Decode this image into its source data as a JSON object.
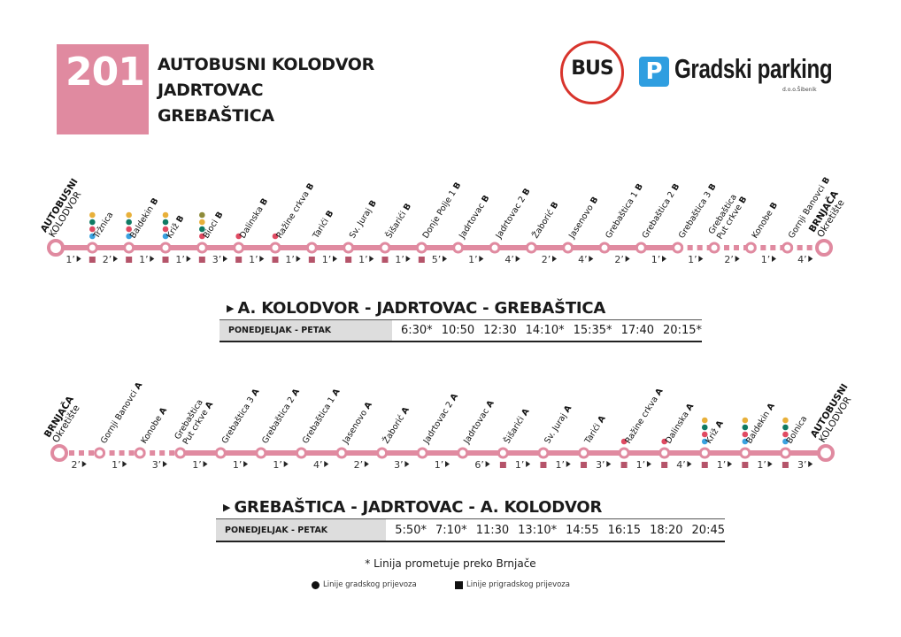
{
  "header": {
    "line_number": "201",
    "stops_title": [
      "AUTOBUSNI KOLODVOR",
      "JADRTOVAC",
      "GREBAŠTICA"
    ]
  },
  "logos": {
    "bus": "BUS",
    "parking_icon": "P",
    "parking": "Gradski parking",
    "parking_sub": "d.o.o.Šibenik"
  },
  "colors": {
    "line": "#e08aa0",
    "square": "#b5546a",
    "yellow": "#e8b03a",
    "green": "#0f7a63",
    "red": "#e04a62",
    "blue": "#3aa2e0",
    "olive": "#8e8b3a"
  },
  "route_outbound": {
    "stops": [
      {
        "name": "AUTOBUSNI",
        "name2": "KOLODVOR",
        "terminal": true,
        "bold": true
      },
      {
        "name": "Tržnica",
        "dots": [
          "yellow",
          "green",
          "red",
          "blue"
        ],
        "suburban": true
      },
      {
        "name": "Baldekin",
        "suffix": "B",
        "dots": [
          "yellow",
          "green",
          "red",
          "blue"
        ],
        "suburban": true
      },
      {
        "name": "Križ",
        "suffix": "B",
        "dots": [
          "yellow",
          "green",
          "red",
          "blue"
        ],
        "suburban": true
      },
      {
        "name": "Bioci",
        "suffix": "B",
        "dots": [
          "olive",
          "yellow",
          "green",
          "red"
        ],
        "suburban": true
      },
      {
        "name": "Dalinska",
        "suffix": "B",
        "dots": [
          "red"
        ],
        "suburban": true
      },
      {
        "name": "Ražine crkva",
        "suffix": "B",
        "dots": [
          "red"
        ],
        "suburban": true
      },
      {
        "name": "Tarići",
        "suffix": "B",
        "suburban": true
      },
      {
        "name": "Sv. Juraj",
        "suffix": "B",
        "suburban": true
      },
      {
        "name": "Šišarići",
        "suffix": "B",
        "suburban": true
      },
      {
        "name": "Donje Polje 1",
        "suffix": "B",
        "suburban": true
      },
      {
        "name": "Jadrtovac",
        "suffix": "B"
      },
      {
        "name": "Jadrtovac 2",
        "suffix": "B"
      },
      {
        "name": "Žaborić",
        "suffix": "B"
      },
      {
        "name": "Jasenovo",
        "suffix": "B"
      },
      {
        "name": "Grebaštica 1",
        "suffix": "B"
      },
      {
        "name": "Grebaštica 2",
        "suffix": "B"
      },
      {
        "name": "Grebaštica 3",
        "suffix": "B"
      },
      {
        "name": "Grebaštica",
        "name2": "Put crkve",
        "suffix": "B"
      },
      {
        "name": "Konobe",
        "suffix": "B"
      },
      {
        "name": "Gornji Banovci",
        "suffix": "B"
      },
      {
        "name": "BRNJAČA",
        "name2": "Okretište",
        "terminal": true,
        "bold": true
      }
    ],
    "minutes": [
      "1’",
      "2’",
      "1’",
      "1’",
      "3’",
      "1’",
      "1’",
      "1’",
      "1’",
      "1’",
      "5’",
      "1’",
      "4’",
      "2’",
      "4’",
      "2’",
      "1’",
      "1’",
      "2’",
      "1’",
      "4’"
    ],
    "dashed_from_segment": 17
  },
  "route_inbound": {
    "stops": [
      {
        "name": "BRNJAČA",
        "name2": "Okretište",
        "terminal": true,
        "bold": true
      },
      {
        "name": "Gornji Banovci",
        "suffix": "A"
      },
      {
        "name": "Konobe",
        "suffix": "A"
      },
      {
        "name": "Grebaštica",
        "name2": "Put crkve",
        "suffix": "A"
      },
      {
        "name": "Grebaštica 3",
        "suffix": "A"
      },
      {
        "name": "Grebaštica 2",
        "suffix": "A"
      },
      {
        "name": "Grebaštica 1",
        "suffix": "A"
      },
      {
        "name": "Jasenovo",
        "suffix": "A"
      },
      {
        "name": "Žaborić",
        "suffix": "A"
      },
      {
        "name": "Jadrtovac 2",
        "suffix": "A"
      },
      {
        "name": "Jadrtovac",
        "suffix": "A"
      },
      {
        "name": "Šišarići",
        "suffix": "A",
        "suburban": true
      },
      {
        "name": "Sv. Juraj",
        "suffix": "A",
        "suburban": true
      },
      {
        "name": "Tarići",
        "suffix": "A",
        "suburban": true
      },
      {
        "name": "Ražine crkva",
        "suffix": "A",
        "dots": [
          "red"
        ],
        "suburban": true
      },
      {
        "name": "Dalinska",
        "suffix": "A",
        "dots": [
          "red"
        ],
        "suburban": true
      },
      {
        "name": "Križ",
        "suffix": "A",
        "dots": [
          "yellow",
          "green",
          "red",
          "blue"
        ],
        "suburban": true
      },
      {
        "name": "Baldekin",
        "suffix": "A",
        "dots": [
          "yellow",
          "green",
          "red",
          "blue"
        ],
        "suburban": true
      },
      {
        "name": "Bolnica",
        "dots": [
          "yellow",
          "green",
          "red",
          "blue"
        ],
        "suburban": true
      },
      {
        "name": "AUTOBUSNI",
        "name2": "KOLODVOR",
        "terminal": true,
        "bold": true
      }
    ],
    "minutes": [
      "2’",
      "1’",
      "3’",
      "1’",
      "1’",
      "1’",
      "4’",
      "2’",
      "3’",
      "1’",
      "6’",
      "1’",
      "1’",
      "3’",
      "1’",
      "4’",
      "1’",
      "1’",
      "3’"
    ],
    "dashed_until_segment": 3
  },
  "timetable_outbound": {
    "title": "A. KOLODVOR - JADRTOVAC - GREBAŠTICA",
    "day": "PONEDJELJAK - PETAK",
    "times": [
      "6:30*",
      "10:50",
      "12:30",
      "14:10*",
      "15:35*",
      "17:40",
      "20:15*"
    ]
  },
  "timetable_inbound": {
    "title": "GREBAŠTICA - JADRTOVAC - A. KOLODVOR",
    "day": "PONEDJELJAK - PETAK",
    "times": [
      "5:50*",
      "7:10*",
      "11:30",
      "13:10*",
      "14:55",
      "16:15",
      "18:20",
      "20:45"
    ]
  },
  "footnote": "* Linija prometuje preko Brnjače",
  "legend": {
    "city": "Linije gradskog prijevoza",
    "suburban": "Linije prigradskog prijevoza"
  }
}
